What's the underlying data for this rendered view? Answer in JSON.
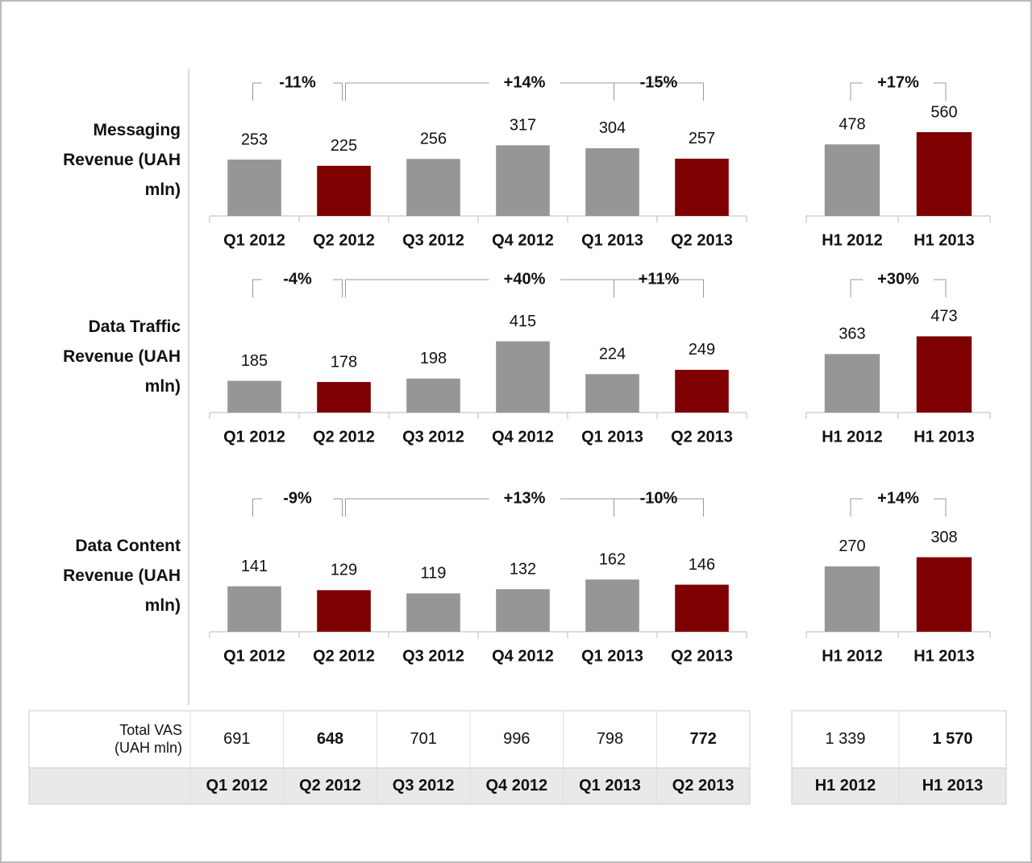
{
  "chart_data": [
    {
      "type": "bar",
      "title": "Messaging Revenue (UAH mln)",
      "categories": [
        "Q1 2012",
        "Q2 2012",
        "Q3 2012",
        "Q4 2012",
        "Q1 2013",
        "Q2 2013"
      ],
      "values": [
        253,
        225,
        256,
        317,
        304,
        257
      ],
      "colors": [
        "#969696",
        "#7f0000",
        "#969696",
        "#969696",
        "#969696",
        "#7f0000"
      ],
      "ylim": [
        0,
        470
      ],
      "annotations": [
        "-11%",
        "+14%",
        "-15%"
      ]
    },
    {
      "type": "bar",
      "categories": [
        "H1 2012",
        "H1 2013"
      ],
      "values": [
        478,
        560
      ],
      "colors": [
        "#969696",
        "#7f0000"
      ],
      "ylim": [
        0,
        700
      ],
      "annotations": [
        "+17%"
      ]
    },
    {
      "type": "bar",
      "title": "Data Traffic Revenue (UAH mln)",
      "categories": [
        "Q1 2012",
        "Q2 2012",
        "Q3 2012",
        "Q4 2012",
        "Q1 2013",
        "Q2 2013"
      ],
      "values": [
        185,
        178,
        198,
        415,
        224,
        249
      ],
      "colors": [
        "#969696",
        "#7f0000",
        "#969696",
        "#969696",
        "#969696",
        "#7f0000"
      ],
      "ylim": [
        0,
        610
      ],
      "annotations": [
        "-4%",
        "+40%",
        "+11%"
      ]
    },
    {
      "type": "bar",
      "categories": [
        "H1 2012",
        "H1 2013"
      ],
      "values": [
        363,
        473
      ],
      "colors": [
        "#969696",
        "#7f0000"
      ],
      "ylim": [
        0,
        650
      ],
      "annotations": [
        "+30%"
      ]
    },
    {
      "type": "bar",
      "title": "Data Content Revenue (UAH mln)",
      "categories": [
        "Q1 2012",
        "Q2 2012",
        "Q3 2012",
        "Q4 2012",
        "Q1 2013",
        "Q2 2013"
      ],
      "values": [
        141,
        129,
        119,
        132,
        162,
        146
      ],
      "colors": [
        "#969696",
        "#7f0000",
        "#969696",
        "#969696",
        "#969696",
        "#7f0000"
      ],
      "ylim": [
        0,
        325
      ],
      "annotations": [
        "-9%",
        "+13%",
        "-10%"
      ]
    },
    {
      "type": "bar",
      "categories": [
        "H1 2012",
        "H1 2013"
      ],
      "values": [
        270,
        308
      ],
      "colors": [
        "#969696",
        "#7f0000"
      ],
      "ylim": [
        0,
        433
      ],
      "annotations": [
        "+14%"
      ]
    }
  ],
  "table": {
    "label": "Total VAS (UAH mln)",
    "columns": [
      "Q1 2012",
      "Q2 2012",
      "Q3 2012",
      "Q4 2012",
      "Q1 2013",
      "Q2 2013",
      "H1 2012",
      "H1 2013"
    ],
    "values": [
      "691",
      "648",
      "701",
      "996",
      "798",
      "772",
      "1 339",
      "1 570"
    ],
    "colors": [
      "#222222",
      "#9b1111",
      "#222222",
      "#222222",
      "#222222",
      "#9b1111",
      "#222222",
      "#9b1111"
    ]
  }
}
